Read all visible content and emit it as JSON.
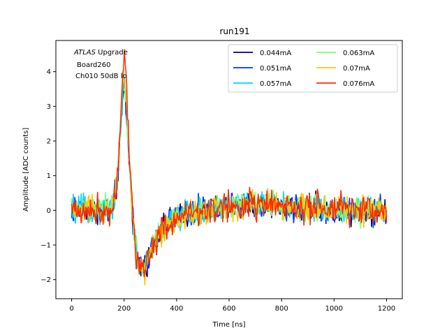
{
  "chart_data": {
    "type": "line",
    "title": "run191",
    "xlabel": "Time [ns]",
    "ylabel": "Amplitude [ADC counts]",
    "xlim": [
      -60,
      1260
    ],
    "ylim": [
      -2.55,
      4.9
    ],
    "xticks": [
      0,
      200,
      400,
      600,
      800,
      1000,
      1200
    ],
    "yticks": [
      -2,
      -1,
      0,
      1,
      2,
      3,
      4
    ],
    "grid": false,
    "legend_position": "top-right",
    "legend_columns": 2,
    "annotation": {
      "line1_italic": "ATLAS",
      "line1_rest": " Upgrade",
      "line2": "Board260",
      "line3": "Ch010 50dB lo"
    },
    "pulse_shape": {
      "x": [
        0,
        150,
        170,
        185,
        195,
        200,
        208,
        220,
        235,
        250,
        265,
        280,
        300,
        330,
        370,
        420,
        500,
        600,
        700,
        800,
        900,
        1000,
        1100,
        1200
      ],
      "y": [
        0,
        0,
        0.6,
        2.4,
        3.9,
        4.2,
        3.5,
        1.6,
        -0.5,
        -1.4,
        -1.7,
        -1.6,
        -1.2,
        -0.7,
        -0.35,
        -0.15,
        0,
        0.1,
        0.2,
        0.1,
        0.05,
        0,
        0,
        0
      ]
    },
    "series": [
      {
        "name": "0.044mA",
        "color": "#00007f",
        "peak": 3.5,
        "noise": 0.28
      },
      {
        "name": "0.051mA",
        "color": "#0033ff",
        "peak": 3.7,
        "noise": 0.3
      },
      {
        "name": "0.057mA",
        "color": "#00d4ff",
        "peak": 3.8,
        "noise": 0.3
      },
      {
        "name": "0.063mA",
        "color": "#7dff7a",
        "peak": 3.9,
        "noise": 0.3
      },
      {
        "name": "0.07mA",
        "color": "#ffc400",
        "peak": 4.1,
        "noise": 0.32
      },
      {
        "name": "0.076mA",
        "color": "#ff2a00",
        "peak": 4.4,
        "noise": 0.34
      }
    ]
  }
}
